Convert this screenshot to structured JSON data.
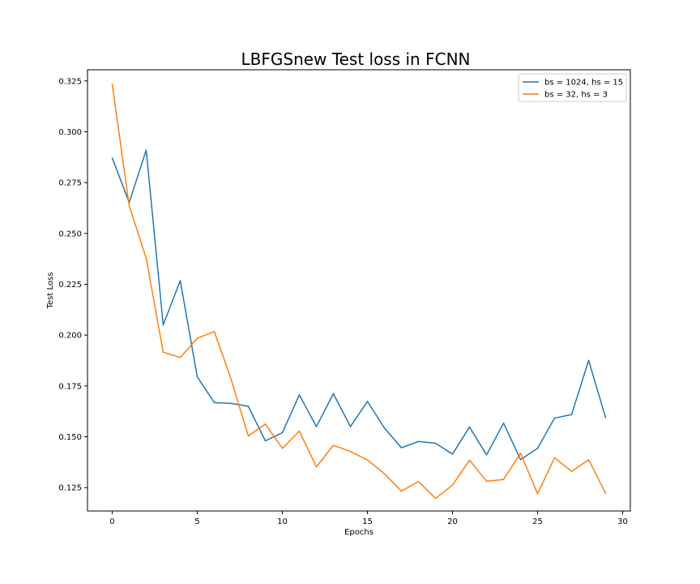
{
  "chart_data": {
    "type": "line",
    "title": "LBFGSnew Test loss in FCNN",
    "xlabel": "Epochs",
    "ylabel": "Test Loss",
    "xlim": [
      -1.45,
      30.45
    ],
    "ylim": [
      0.1135,
      0.3305
    ],
    "xticks": [
      0,
      5,
      10,
      15,
      20,
      25,
      30
    ],
    "yticks": [
      0.125,
      0.15,
      0.175,
      0.2,
      0.225,
      0.25,
      0.275,
      0.3,
      0.325
    ],
    "ytick_labels": [
      "0.125",
      "0.150",
      "0.175",
      "0.200",
      "0.225",
      "0.250",
      "0.275",
      "0.300",
      "0.325"
    ],
    "grid": false,
    "legend_position": "top-right",
    "x": [
      0,
      1,
      2,
      3,
      4,
      5,
      6,
      7,
      8,
      9,
      10,
      11,
      12,
      13,
      14,
      15,
      16,
      17,
      18,
      19,
      20,
      21,
      22,
      23,
      24,
      25,
      26,
      27,
      28,
      29
    ],
    "series": [
      {
        "name": "bs = 1024, hs = 15",
        "color": "#1f77b4",
        "values": [
          0.2872,
          0.2652,
          0.291,
          0.205,
          0.2268,
          0.1795,
          0.1668,
          0.1664,
          0.165,
          0.148,
          0.152,
          0.1706,
          0.155,
          0.1712,
          0.155,
          0.1674,
          0.1543,
          0.1446,
          0.1477,
          0.1468,
          0.1415,
          0.1548,
          0.1411,
          0.1567,
          0.1388,
          0.1443,
          0.1592,
          0.1609,
          0.1876,
          0.1593
        ]
      },
      {
        "name": "bs = 32, hs = 3",
        "color": "#ff7f0e",
        "values": [
          0.3236,
          0.2636,
          0.2378,
          0.1916,
          0.189,
          0.1984,
          0.2018,
          0.178,
          0.1504,
          0.1563,
          0.1443,
          0.1528,
          0.1352,
          0.1458,
          0.1428,
          0.1386,
          0.1318,
          0.1233,
          0.128,
          0.1197,
          0.1262,
          0.1385,
          0.1281,
          0.129,
          0.1419,
          0.122,
          0.1397,
          0.133,
          0.1387,
          0.1222
        ]
      }
    ]
  }
}
